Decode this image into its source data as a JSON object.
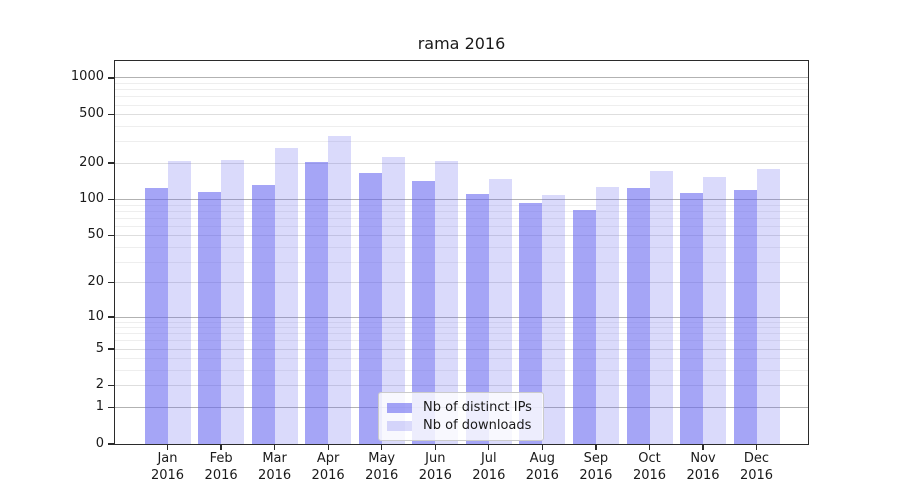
{
  "title": "rama 2016",
  "chart_data": {
    "type": "bar",
    "title": "rama 2016",
    "y_scale": "log10(value+1)",
    "categories": [
      "Jan 2016",
      "Feb 2016",
      "Mar 2016",
      "Apr 2016",
      "May 2016",
      "Jun 2016",
      "Jul 2016",
      "Aug 2016",
      "Sep 2016",
      "Oct 2016",
      "Nov 2016",
      "Dec 2016"
    ],
    "series": [
      {
        "name": "Nb of distinct IPs",
        "color": "rgba(100,100,240,0.58)",
        "values": [
          125,
          116,
          131,
          205,
          165,
          143,
          112,
          94,
          82,
          124,
          114,
          120
        ]
      },
      {
        "name": "Nb of downloads",
        "color": "rgba(100,100,240,0.24)",
        "values": [
          209,
          213,
          264,
          334,
          223,
          208,
          148,
          110,
          126,
          173,
          154,
          180
        ]
      }
    ],
    "y_ticks": [
      1000,
      500,
      200,
      100,
      50,
      20,
      10,
      5,
      2,
      1,
      0
    ],
    "ylim": [
      0,
      1350
    ],
    "xlabel": "",
    "ylabel": "",
    "grid": true,
    "legend_position": "lower center"
  },
  "colors": {
    "grid_major": "#b2b2b2",
    "grid_mid": "#dedede",
    "grid_minor": "#eeeeee",
    "spine": "#2b2b2b",
    "background": "#ffffff",
    "text": "#1a1a1a"
  }
}
